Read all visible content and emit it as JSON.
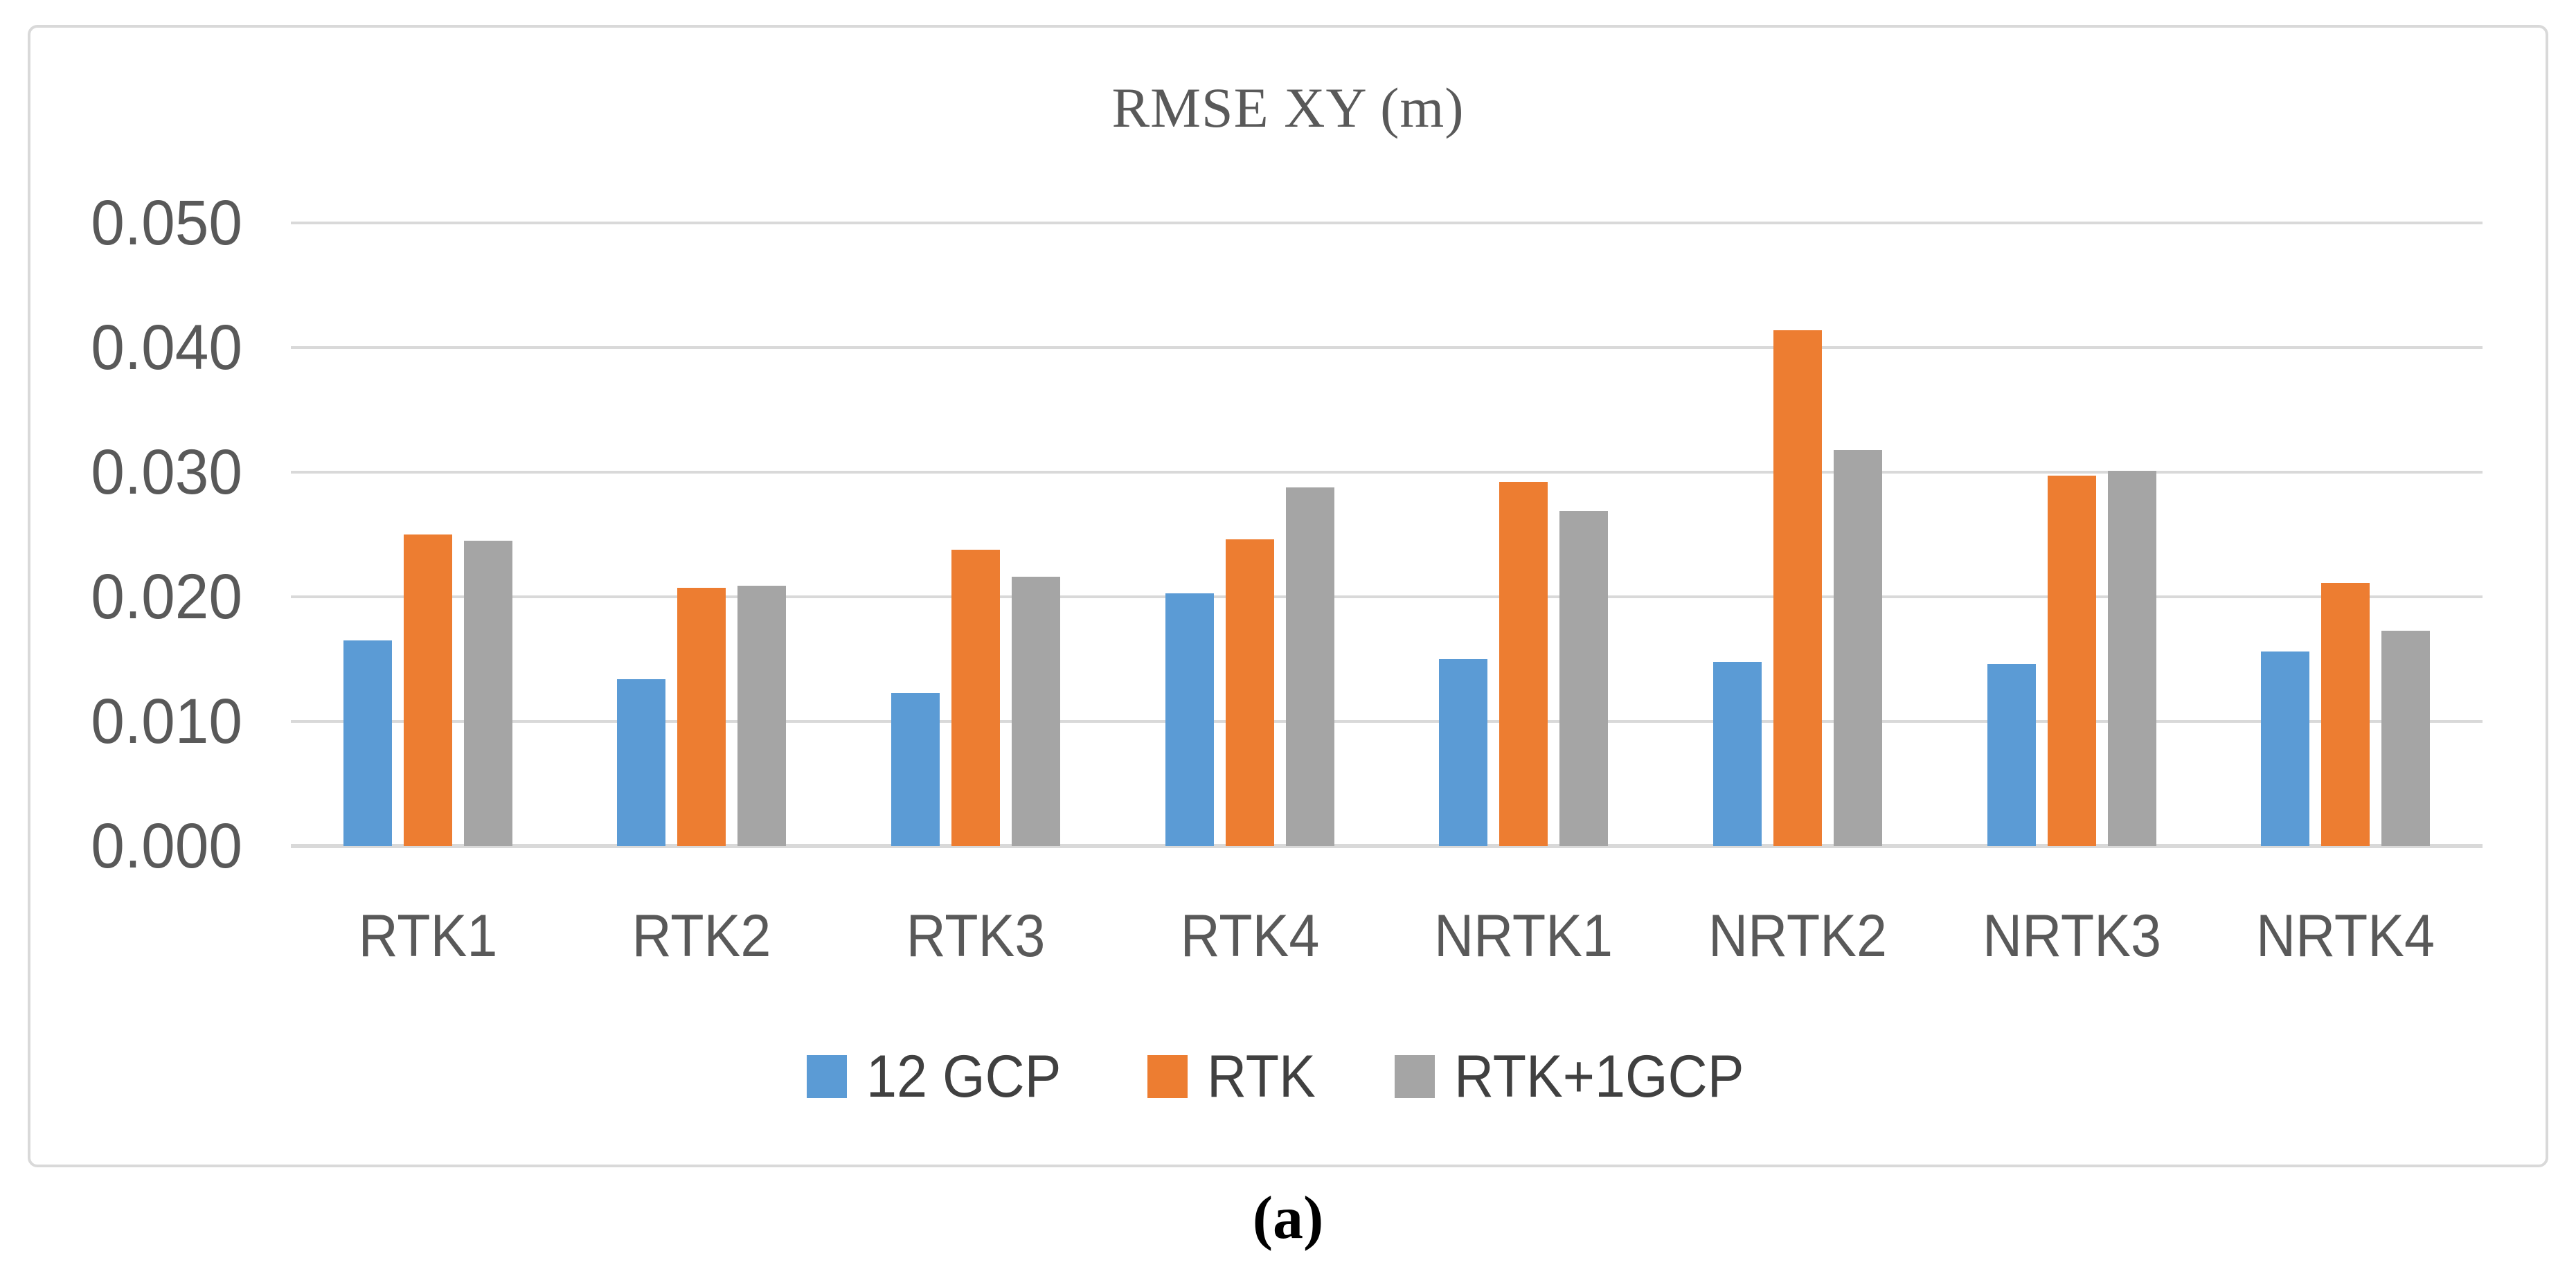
{
  "figure": {
    "title": "RMSE XY (m)",
    "caption": "(a)"
  },
  "colors": {
    "series_blue": "#5B9BD5",
    "series_orange": "#ED7D31",
    "series_gray": "#A5A5A5",
    "gridline": "#D9D9D9",
    "axis_line": "#D9D9D9",
    "axis_text": "#595959",
    "title_text": "#595959",
    "legend_text": "#404040",
    "frame_border": "#D9D9D9",
    "caption_text": "#000000"
  },
  "chart_data": {
    "type": "bar",
    "title": "RMSE XY (m)",
    "xlabel": "",
    "ylabel": "",
    "categories": [
      "RTK1",
      "RTK2",
      "RTK3",
      "RTK4",
      "NRTK1",
      "NRTK2",
      "NRTK3",
      "NRTK4"
    ],
    "series": [
      {
        "name": "12 GCP",
        "color": "#5B9BD5",
        "values": [
          0.0165,
          0.0134,
          0.0123,
          0.0203,
          0.015,
          0.0148,
          0.0146,
          0.0156
        ]
      },
      {
        "name": "RTK",
        "color": "#ED7D31",
        "values": [
          0.025,
          0.0207,
          0.0238,
          0.0246,
          0.0292,
          0.0414,
          0.0297,
          0.0211
        ]
      },
      {
        "name": "RTK+1GCP",
        "color": "#A5A5A5",
        "values": [
          0.0245,
          0.0209,
          0.0216,
          0.0288,
          0.0269,
          0.0318,
          0.0301,
          0.0173
        ]
      }
    ],
    "ylim": [
      0.0,
      0.05
    ],
    "ytick_step": 0.01,
    "ytick_labels": [
      "0.000",
      "0.010",
      "0.020",
      "0.030",
      "0.040",
      "0.050"
    ],
    "grid": true,
    "legend_position": "bottom-center"
  }
}
